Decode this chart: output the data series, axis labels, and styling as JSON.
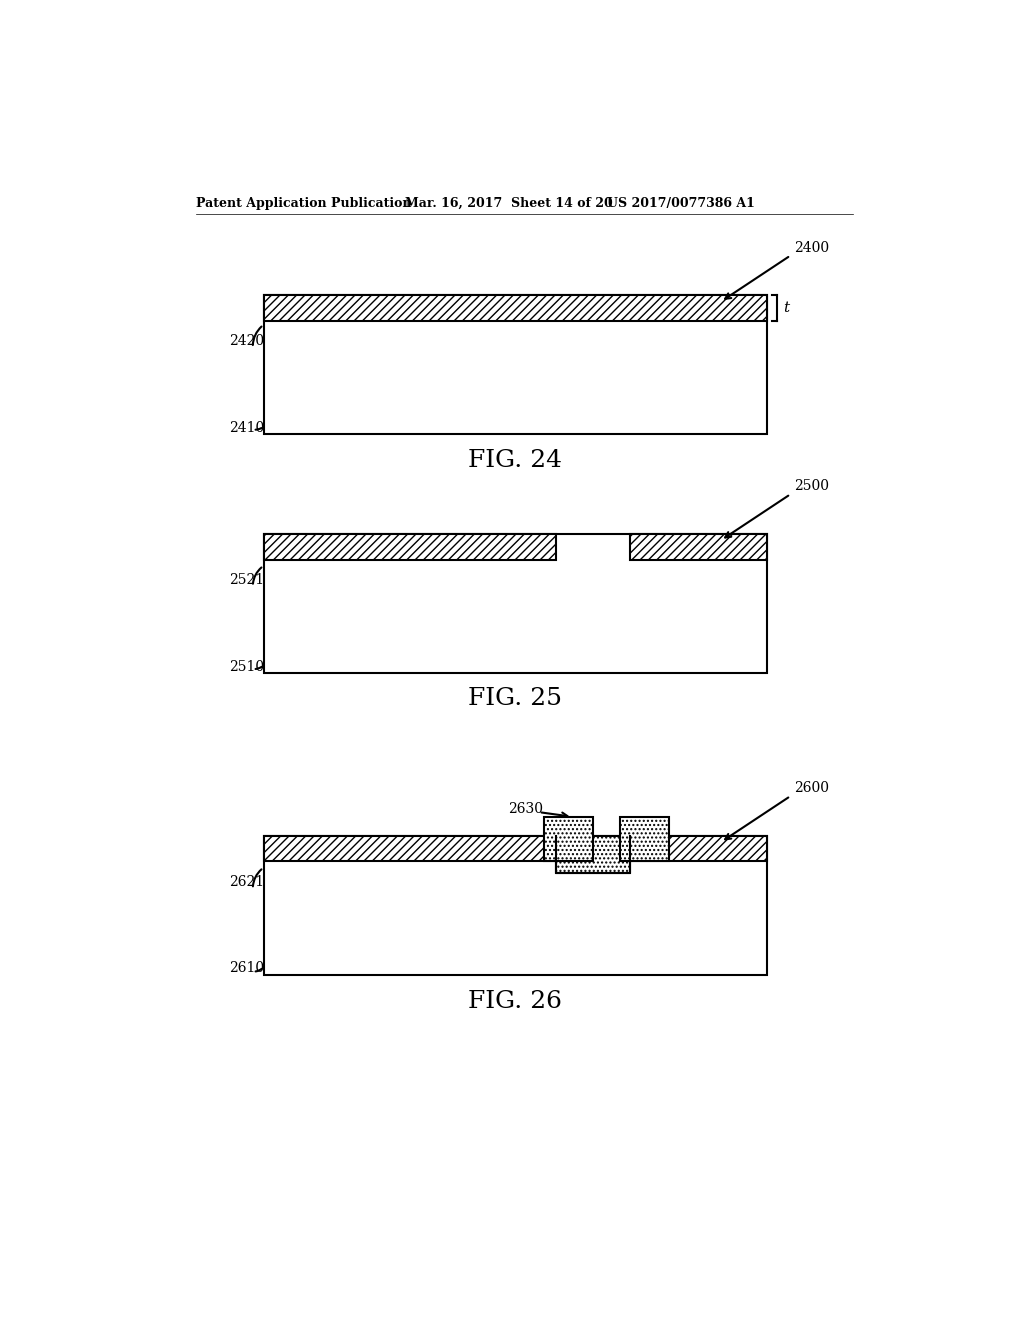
{
  "bg_color": "#ffffff",
  "header_left": "Patent Application Publication",
  "header_mid": "Mar. 16, 2017  Sheet 14 of 20",
  "header_right": "US 2017/0077386 A1",
  "fig24_label": "FIG. 24",
  "fig25_label": "FIG. 25",
  "fig26_label": "FIG. 26",
  "label_2400": "2400",
  "label_2410": "2410",
  "label_2420": "2420",
  "label_t": "t",
  "label_2500": "2500",
  "label_2510": "2510",
  "label_2521": "2521",
  "label_2600": "2600",
  "label_2610": "2610",
  "label_2621": "2621",
  "label_2630": "2630",
  "hatch_pattern": "////",
  "dot_pattern": "....",
  "line_color": "#000000",
  "font_size_header": 9,
  "font_size_label": 10,
  "font_size_fig": 18
}
